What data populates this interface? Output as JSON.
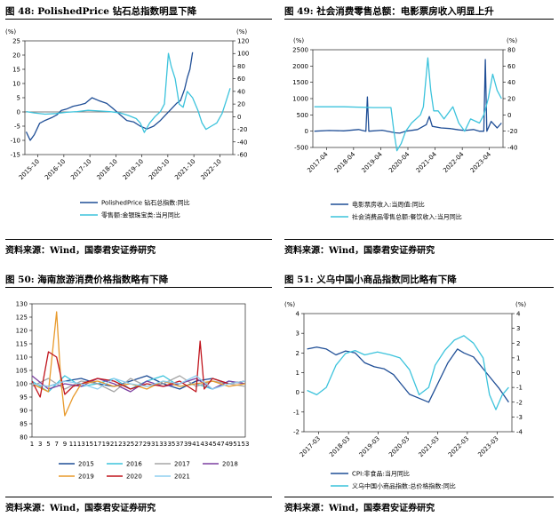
{
  "colors": {
    "dark": "#1f4e96",
    "light": "#3cc3dc"
  },
  "panels": [
    {
      "title": "图 48: PolishedPrice 钻石总指数明显下降",
      "source": "资料来源：Wind，国泰君安证券研究",
      "chart_data": {
        "type": "line",
        "left_unit": "(%)",
        "right_unit": "(%)",
        "left_ylim": [
          -15,
          25
        ],
        "left_ticks": [
          -15,
          -10,
          -5,
          0,
          5,
          10,
          15,
          20,
          25
        ],
        "right_ylim": [
          -60,
          120
        ],
        "right_ticks": [
          -60,
          -40,
          -20,
          0,
          20,
          40,
          60,
          80,
          100,
          120
        ],
        "x_ticks": [
          "2015-10",
          "2016-10",
          "2017-10",
          "2018-10",
          "2019-10",
          "2020-10",
          "2021-10",
          "2022-10"
        ],
        "x_range": [
          2015.75,
          2023.5
        ],
        "series": [
          {
            "name": "PolishedPrice 钻石总指数:同比",
            "axis": "left",
            "color": "#1f4e96",
            "x": [
              2015.8,
              2015.95,
              2016.1,
              2016.3,
              2016.5,
              2016.75,
              2016.95,
              2017.1,
              2017.3,
              2017.55,
              2017.8,
              2018.0,
              2018.25,
              2018.5,
              2018.8,
              2019.0,
              2019.3,
              2019.55,
              2019.8,
              2020.05,
              2020.3,
              2020.55,
              2020.8,
              2021.0,
              2021.2,
              2021.4,
              2021.55,
              2021.7,
              2021.8,
              2021.9,
              2022.0
            ],
            "y": [
              -7,
              -10,
              -8,
              -4,
              -3,
              -2,
              -1,
              0.5,
              1,
              2,
              2.5,
              3,
              5,
              4,
              3,
              1.5,
              -1,
              -3,
              -3.5,
              -5,
              -6,
              -5,
              -3,
              -1,
              1,
              3,
              4,
              8,
              12,
              15,
              21
            ]
          },
          {
            "name": "零售额:金银珠宝类:当月同比",
            "axis": "right",
            "color": "#3cc3dc",
            "x": [
              2015.8,
              2016.1,
              2016.5,
              2016.9,
              2017.3,
              2017.7,
              2018.1,
              2018.5,
              2018.9,
              2019.3,
              2019.6,
              2019.9,
              2020.05,
              2020.2,
              2020.4,
              2020.6,
              2020.8,
              2020.95,
              2021.1,
              2021.2,
              2021.35,
              2021.5,
              2021.65,
              2021.8,
              2022.0,
              2022.2,
              2022.35,
              2022.5,
              2022.7,
              2022.9,
              2023.1,
              2023.25,
              2023.4
            ],
            "y": [
              8,
              6,
              4,
              5,
              7,
              8,
              10,
              9,
              8,
              6,
              2,
              -3,
              -10,
              -25,
              -10,
              0,
              8,
              20,
              100,
              80,
              60,
              20,
              15,
              40,
              30,
              10,
              -10,
              -20,
              -15,
              -10,
              5,
              25,
              45
            ]
          }
        ],
        "zero_line": true
      }
    },
    {
      "title": "图 49: 社会消费零售总额：电影票房收入明显上升",
      "source": "资料来源：Wind，国泰君安证券研究",
      "chart_data": {
        "type": "line",
        "left_unit": "(%)",
        "right_unit": "(%)",
        "left_ylim": [
          -500,
          2500
        ],
        "left_ticks": [
          -500,
          0,
          500,
          1000,
          1500,
          2000,
          2500
        ],
        "right_ylim": [
          -40,
          80
        ],
        "right_ticks": [
          -40,
          -20,
          0,
          20,
          40,
          60,
          80
        ],
        "x_ticks": [
          "2017-04",
          "2018-04",
          "2019-04",
          "2020-04",
          "2021-04",
          "2022-04",
          "2023-04"
        ],
        "x_range": [
          2017.25,
          2023.7
        ],
        "series": [
          {
            "name": "电影票房收入:当周值:同比",
            "axis": "left",
            "color": "#1f4e96",
            "x": [
              2017.3,
              2017.8,
              2018.3,
              2018.8,
              2019.05,
              2019.1,
              2019.15,
              2019.6,
              2020.05,
              2020.2,
              2020.4,
              2020.8,
              2021.1,
              2021.2,
              2021.3,
              2021.6,
              2021.9,
              2022.2,
              2022.4,
              2022.7,
              2022.9,
              2023.05,
              2023.1,
              2023.15,
              2023.3,
              2023.5,
              2023.65
            ],
            "y": [
              0,
              20,
              10,
              50,
              0,
              1050,
              0,
              30,
              -50,
              -60,
              0,
              50,
              200,
              450,
              150,
              100,
              80,
              40,
              20,
              50,
              0,
              0,
              2200,
              0,
              300,
              100,
              250
            ]
          },
          {
            "name": "社会消费品零售总额:餐饮收入:当月同比",
            "axis": "right",
            "color": "#3cc3dc",
            "x": [
              2017.3,
              2018.3,
              2019.3,
              2019.9,
              2020.0,
              2020.1,
              2020.25,
              2020.4,
              2020.6,
              2020.9,
              2021.0,
              2021.15,
              2021.25,
              2021.35,
              2021.5,
              2021.7,
              2022.0,
              2022.2,
              2022.4,
              2022.6,
              2022.9,
              2023.05,
              2023.2,
              2023.35,
              2023.5,
              2023.65
            ],
            "y": [
              10,
              10,
              9,
              9,
              -20,
              -44,
              -35,
              -20,
              -10,
              0,
              10,
              70,
              30,
              5,
              5,
              -5,
              10,
              -10,
              -20,
              -5,
              -10,
              0,
              20,
              50,
              30,
              20
            ]
          }
        ],
        "zero_line": false
      }
    },
    {
      "title": "图 50: 海南旅游消费价格指数略有下降",
      "source": "资料来源：Wind，国泰君安证券研究",
      "chart_data": {
        "type": "line",
        "ylim": [
          80,
          130
        ],
        "y_ticks": [
          80,
          85,
          90,
          95,
          100,
          105,
          110,
          115,
          120,
          125,
          130
        ],
        "x_ticks": [
          "1",
          "3",
          "5",
          "7",
          "9",
          "11",
          "13",
          "15",
          "17",
          "19",
          "21",
          "23",
          "25",
          "27",
          "29",
          "31",
          "33",
          "35",
          "37",
          "39",
          "41",
          "43",
          "45",
          "47",
          "49",
          "51",
          "53"
        ],
        "x_range": [
          1,
          53
        ],
        "series": [
          {
            "name": "2015",
            "color": "#1f4e96",
            "x": [
              1,
              5,
              9,
              13,
              17,
              21,
              25,
              29,
              33,
              37,
              41,
              45,
              49,
              53
            ],
            "y": [
              100,
              99,
              101,
              102,
              100,
              99,
              101,
              103,
              100,
              98,
              101,
              102,
              100,
              101
            ]
          },
          {
            "name": "2016",
            "color": "#3cc3dc",
            "x": [
              1,
              5,
              9,
              13,
              17,
              21,
              25,
              29,
              33,
              37,
              41,
              45,
              49,
              53
            ],
            "y": [
              101,
              97,
              103,
              99,
              100,
              102,
              98,
              101,
              103,
              99,
              100,
              98,
              101,
              100
            ]
          },
          {
            "name": "2017",
            "color": "#a6a6a6",
            "x": [
              1,
              5,
              9,
              13,
              17,
              21,
              25,
              29,
              33,
              37,
              41,
              45,
              49,
              53
            ],
            "y": [
              99,
              102,
              98,
              101,
              100,
              97,
              102,
              99,
              100,
              103,
              99,
              101,
              100,
              99
            ]
          },
          {
            "name": "2018",
            "color": "#7b3fa0",
            "x": [
              1,
              5,
              9,
              13,
              17,
              21,
              25,
              29,
              33,
              37,
              41,
              45,
              49,
              53
            ],
            "y": [
              103,
              98,
              100,
              99,
              102,
              100,
              97,
              101,
              99,
              100,
              102,
              98,
              101,
              100
            ]
          },
          {
            "name": "2019",
            "color": "#e89a2c",
            "x": [
              1,
              5,
              7,
              8,
              9,
              11,
              13,
              17,
              21,
              25,
              29,
              33,
              37,
              41,
              45,
              49,
              53
            ],
            "y": [
              100,
              97,
              127,
              102,
              88,
              95,
              100,
              101,
              99,
              100,
              98,
              101,
              99,
              100,
              101,
              99,
              100
            ]
          },
          {
            "name": "2020",
            "color": "#c0141c",
            "x": [
              1,
              3,
              5,
              7,
              9,
              11,
              13,
              17,
              21,
              25,
              29,
              33,
              37,
              41,
              42,
              43,
              45,
              49,
              53
            ],
            "y": [
              101,
              95,
              112,
              110,
              96,
              99,
              100,
              102,
              101,
              98,
              100,
              99,
              101,
              97,
              116,
              98,
              102,
              100,
              101
            ]
          },
          {
            "name": "2021",
            "color": "#8fcff0",
            "x": [
              1,
              5,
              9,
              13,
              17,
              21,
              25,
              29,
              33,
              37,
              41,
              45,
              49,
              53
            ],
            "y": [
              100,
              99,
              101,
              100,
              98,
              102,
              100,
              99,
              101,
              100,
              103,
              98,
              100,
              101
            ]
          }
        ]
      }
    },
    {
      "title": "图 51: 义乌中国小商品指数同比略有下降",
      "source": "资料来源：Wind，国泰君安证券研究",
      "chart_data": {
        "type": "line",
        "left_unit": "(%)",
        "right_unit": "(%)",
        "left_ylim": [
          -2,
          4
        ],
        "left_ticks": [
          -2,
          -1,
          0,
          1,
          2,
          3,
          4
        ],
        "right_ylim": [
          -4,
          4
        ],
        "right_ticks": [
          -4,
          -3,
          -2,
          -1,
          0,
          1,
          2,
          3,
          4
        ],
        "x_ticks": [
          "2017-03",
          "2018-03",
          "2019-03",
          "2020-03",
          "2021-03",
          "2022-03",
          "2023-03"
        ],
        "x_range": [
          2017.1,
          2023.6
        ],
        "series": [
          {
            "name": "CPI:非食品:当月同比",
            "axis": "left",
            "color": "#1f4e96",
            "x": [
              2017.2,
              2017.5,
              2017.8,
              2018.1,
              2018.4,
              2018.7,
              2019.0,
              2019.3,
              2019.6,
              2019.9,
              2020.1,
              2020.4,
              2020.7,
              2021.0,
              2021.3,
              2021.6,
              2021.9,
              2022.1,
              2022.4,
              2022.7,
              2023.0,
              2023.2,
              2023.5
            ],
            "y": [
              2.2,
              2.3,
              2.2,
              1.9,
              2.1,
              2.0,
              1.5,
              1.3,
              1.2,
              0.9,
              0.5,
              -0.1,
              -0.3,
              -0.5,
              0.5,
              1.5,
              2.2,
              2.0,
              1.8,
              1.2,
              0.6,
              0.2,
              -0.5
            ]
          },
          {
            "name": "义乌中国小商品指数:总价格指数:同比",
            "axis": "right",
            "color": "#3cc3dc",
            "x": [
              2017.2,
              2017.5,
              2017.8,
              2018.1,
              2018.4,
              2018.7,
              2019.0,
              2019.4,
              2019.8,
              2020.1,
              2020.4,
              2020.7,
              2021.0,
              2021.2,
              2021.5,
              2021.8,
              2022.1,
              2022.4,
              2022.7,
              2022.9,
              2023.1,
              2023.3,
              2023.5
            ],
            "y": [
              -1.2,
              -1.5,
              -1.0,
              0.5,
              1.3,
              1.5,
              1.2,
              1.4,
              1.2,
              1.0,
              0.2,
              -1.5,
              -1.0,
              0.5,
              1.5,
              2.2,
              2.5,
              2.0,
              1.0,
              -1.5,
              -2.5,
              -1.5,
              -1.0
            ]
          }
        ],
        "zero_line": false
      }
    }
  ]
}
